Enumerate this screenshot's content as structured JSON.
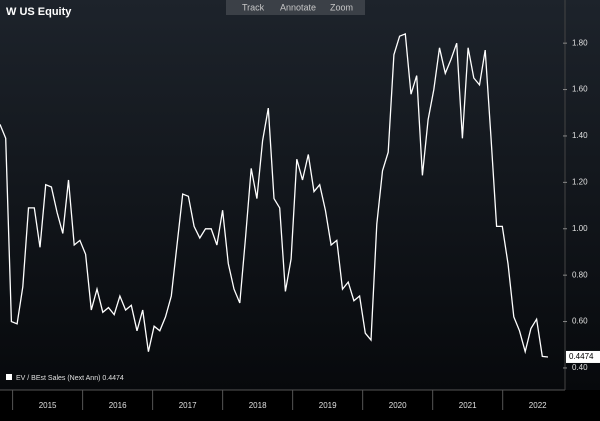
{
  "chart_data": {
    "type": "line",
    "title": "W US Equity",
    "toolbar": [
      "Track",
      "Annotate",
      "Zoom"
    ],
    "series": [
      {
        "name": "EV / BEst Sales (Next Ann)",
        "color": "#ffffff",
        "values": [
          1.45,
          1.39,
          0.6,
          0.59,
          0.75,
          1.09,
          1.09,
          0.92,
          1.19,
          1.18,
          1.07,
          0.98,
          1.21,
          0.93,
          0.95,
          0.89,
          0.65,
          0.74,
          0.64,
          0.66,
          0.63,
          0.71,
          0.65,
          0.67,
          0.56,
          0.65,
          0.47,
          0.58,
          0.56,
          0.62,
          0.71,
          0.93,
          1.15,
          1.14,
          1.01,
          0.96,
          1.0,
          1.0,
          0.93,
          1.08,
          0.85,
          0.74,
          0.68,
          0.96,
          1.26,
          1.13,
          1.38,
          1.52,
          1.13,
          1.09,
          0.73,
          0.87,
          1.3,
          1.21,
          1.32,
          1.16,
          1.19,
          1.08,
          0.93,
          0.95,
          0.74,
          0.77,
          0.69,
          0.71,
          0.55,
          0.52,
          1.02,
          1.25,
          1.33,
          1.75,
          1.83,
          1.84,
          1.58,
          1.66,
          1.23,
          1.47,
          1.6,
          1.78,
          1.67,
          1.73,
          1.8,
          1.39,
          1.78,
          1.65,
          1.62,
          1.77,
          1.4,
          1.01,
          1.01,
          0.85,
          0.62,
          0.56,
          0.47,
          0.57,
          0.61,
          0.45,
          0.4474
        ]
      }
    ],
    "ylim": [
      0.305,
      1.986
    ],
    "yticks": [
      {
        "value": 0.4,
        "label": "0.40"
      },
      {
        "value": 0.6,
        "label": "0.60"
      },
      {
        "value": 0.8,
        "label": "0.80"
      },
      {
        "value": 1.0,
        "label": "1.00"
      },
      {
        "value": 1.2,
        "label": "1.20"
      },
      {
        "value": 1.4,
        "label": "1.40"
      },
      {
        "value": 1.6,
        "label": "1.60"
      },
      {
        "value": 1.8,
        "label": "1.80"
      }
    ],
    "xlim": [
      2014.82,
      2022.87
    ],
    "xticks": [
      2015,
      2016,
      2017,
      2018,
      2019,
      2020,
      2021,
      2022
    ]
  }
}
